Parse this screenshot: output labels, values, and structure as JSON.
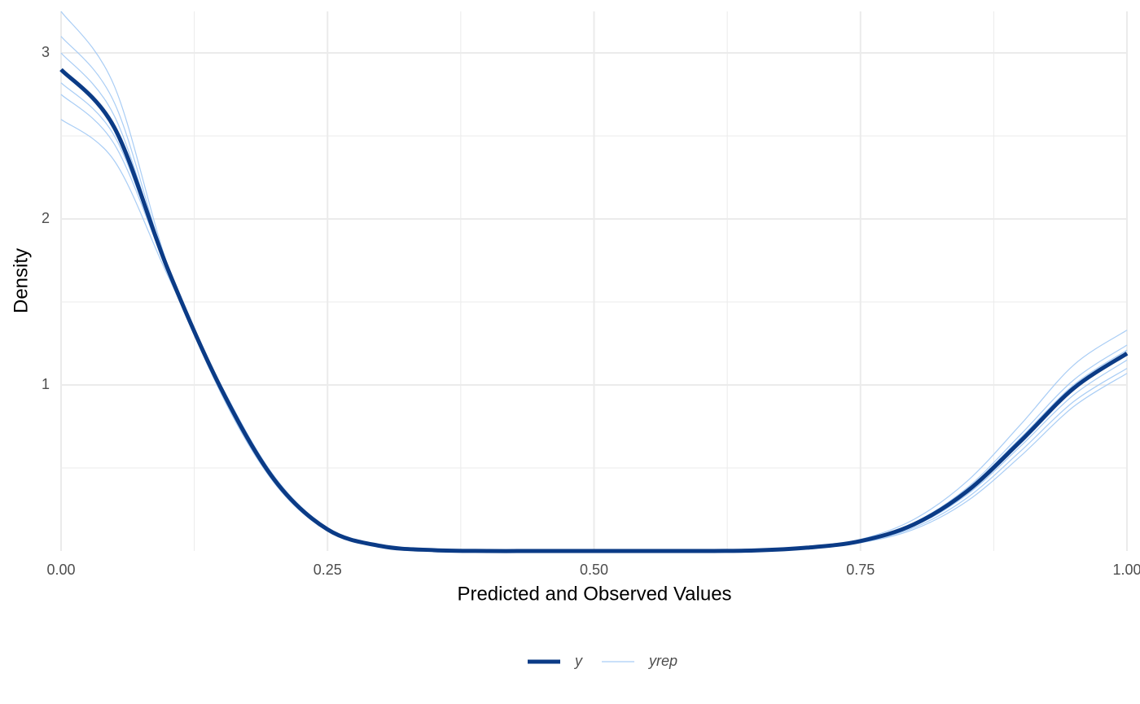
{
  "chart_data": {
    "type": "line",
    "x_label": "Predicted and Observed Values",
    "y_label": "Density",
    "x": [
      0,
      0.05,
      0.1,
      0.15,
      0.2,
      0.25,
      0.3,
      0.35,
      0.4,
      0.45,
      0.5,
      0.55,
      0.6,
      0.65,
      0.7,
      0.75,
      0.8,
      0.85,
      0.9,
      0.95,
      1.0
    ],
    "xlim": [
      0,
      1
    ],
    "ylim": [
      0,
      3.25
    ],
    "xticks": [
      {
        "value": 0,
        "label": "0.00"
      },
      {
        "value": 0.25,
        "label": "0.25"
      },
      {
        "value": 0.5,
        "label": "0.50"
      },
      {
        "value": 0.75,
        "label": "0.75"
      },
      {
        "value": 1,
        "label": "1.00"
      }
    ],
    "yticks": [
      1,
      2,
      3
    ],
    "minor_xticks": [
      0.125,
      0.375,
      0.625,
      0.875
    ],
    "minor_yticks": [
      0.5,
      1.5,
      2.5
    ],
    "grid": true,
    "legend": "bottom",
    "series": [
      {
        "name": "y",
        "color": "#0b3b86",
        "values": [
          2.9,
          2.55,
          1.7,
          0.98,
          0.43,
          0.13,
          0.03,
          0.005,
          0,
          0,
          0,
          0,
          0,
          0.003,
          0.02,
          0.06,
          0.16,
          0.36,
          0.66,
          0.98,
          1.19
        ]
      },
      {
        "name": "yrep",
        "color": "#a9cdf5",
        "draws": [
          [
            3.25,
            2.8,
            1.72,
            0.95,
            0.41,
            0.12,
            0.03,
            0.005,
            0,
            0,
            0,
            0,
            0,
            0.004,
            0.025,
            0.07,
            0.19,
            0.42,
            0.76,
            1.12,
            1.33
          ],
          [
            2.6,
            2.35,
            1.66,
            1.0,
            0.45,
            0.14,
            0.035,
            0.006,
            0,
            0,
            0,
            0,
            0,
            0.002,
            0.015,
            0.05,
            0.13,
            0.3,
            0.57,
            0.87,
            1.07
          ],
          [
            3.1,
            2.7,
            1.7,
            0.96,
            0.42,
            0.13,
            0.03,
            0.005,
            0,
            0,
            0,
            0,
            0,
            0.003,
            0.022,
            0.065,
            0.17,
            0.38,
            0.7,
            1.03,
            1.24
          ],
          [
            2.75,
            2.45,
            1.69,
            0.99,
            0.44,
            0.14,
            0.032,
            0.006,
            0,
            0,
            0,
            0,
            0,
            0.002,
            0.018,
            0.055,
            0.14,
            0.32,
            0.6,
            0.9,
            1.1
          ],
          [
            3.0,
            2.62,
            1.7,
            0.97,
            0.43,
            0.13,
            0.03,
            0.005,
            0,
            0,
            0,
            0,
            0,
            0.003,
            0.02,
            0.06,
            0.15,
            0.34,
            0.63,
            0.94,
            1.15
          ],
          [
            2.82,
            2.5,
            1.69,
            0.98,
            0.43,
            0.13,
            0.031,
            0.005,
            0,
            0,
            0,
            0,
            0,
            0.003,
            0.021,
            0.062,
            0.16,
            0.37,
            0.68,
            1.0,
            1.21
          ]
        ]
      }
    ]
  }
}
